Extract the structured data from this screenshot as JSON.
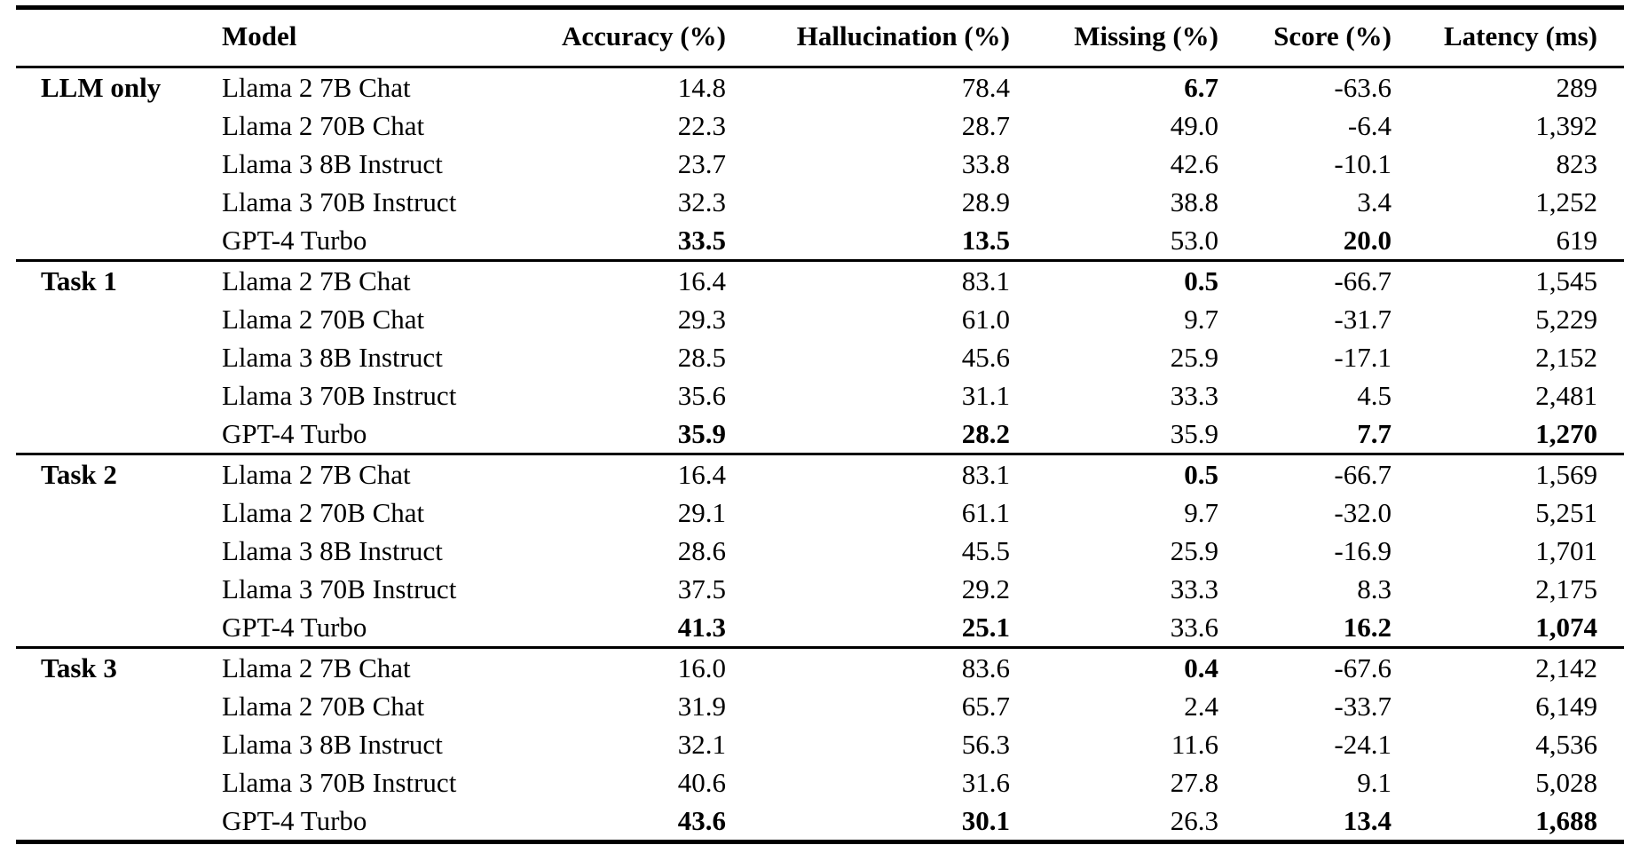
{
  "colors": {
    "background": "#ffffff",
    "text": "#000000",
    "rule": "#000000"
  },
  "table": {
    "columns": [
      "Model",
      "Accuracy (%)",
      "Hallucination (%)",
      "Missing (%)",
      "Score (%)",
      "Latency (ms)"
    ],
    "column_keys": [
      "accuracy",
      "hallucination",
      "missing",
      "score",
      "latency"
    ],
    "groups": [
      {
        "label": "LLM only",
        "rows": [
          {
            "model": "Llama 2 7B Chat",
            "cells": [
              {
                "v": "14.8"
              },
              {
                "v": "78.4"
              },
              {
                "v": "6.7",
                "b": true
              },
              {
                "v": "-63.6"
              },
              {
                "v": "289"
              }
            ]
          },
          {
            "model": "Llama 2 70B Chat",
            "cells": [
              {
                "v": "22.3"
              },
              {
                "v": "28.7"
              },
              {
                "v": "49.0"
              },
              {
                "v": "-6.4"
              },
              {
                "v": "1,392"
              }
            ]
          },
          {
            "model": "Llama 3 8B Instruct",
            "cells": [
              {
                "v": "23.7"
              },
              {
                "v": "33.8"
              },
              {
                "v": "42.6"
              },
              {
                "v": "-10.1"
              },
              {
                "v": "823"
              }
            ]
          },
          {
            "model": "Llama 3 70B Instruct",
            "cells": [
              {
                "v": "32.3"
              },
              {
                "v": "28.9"
              },
              {
                "v": "38.8"
              },
              {
                "v": "3.4"
              },
              {
                "v": "1,252"
              }
            ]
          },
          {
            "model": "GPT-4 Turbo",
            "cells": [
              {
                "v": "33.5",
                "b": true
              },
              {
                "v": "13.5",
                "b": true
              },
              {
                "v": "53.0"
              },
              {
                "v": "20.0",
                "b": true
              },
              {
                "v": "619"
              }
            ]
          }
        ]
      },
      {
        "label": "Task 1",
        "rows": [
          {
            "model": "Llama 2 7B Chat",
            "cells": [
              {
                "v": "16.4"
              },
              {
                "v": "83.1"
              },
              {
                "v": "0.5",
                "b": true
              },
              {
                "v": "-66.7"
              },
              {
                "v": "1,545"
              }
            ]
          },
          {
            "model": "Llama 2 70B Chat",
            "cells": [
              {
                "v": "29.3"
              },
              {
                "v": "61.0"
              },
              {
                "v": "9.7"
              },
              {
                "v": "-31.7"
              },
              {
                "v": "5,229"
              }
            ]
          },
          {
            "model": "Llama 3 8B Instruct",
            "cells": [
              {
                "v": "28.5"
              },
              {
                "v": "45.6"
              },
              {
                "v": "25.9"
              },
              {
                "v": "-17.1"
              },
              {
                "v": "2,152"
              }
            ]
          },
          {
            "model": "Llama 3 70B Instruct",
            "cells": [
              {
                "v": "35.6"
              },
              {
                "v": "31.1"
              },
              {
                "v": "33.3"
              },
              {
                "v": "4.5"
              },
              {
                "v": "2,481"
              }
            ]
          },
          {
            "model": "GPT-4 Turbo",
            "cells": [
              {
                "v": "35.9",
                "b": true
              },
              {
                "v": "28.2",
                "b": true
              },
              {
                "v": "35.9"
              },
              {
                "v": "7.7",
                "b": true
              },
              {
                "v": "1,270",
                "b": true
              }
            ]
          }
        ]
      },
      {
        "label": "Task 2",
        "rows": [
          {
            "model": "Llama 2 7B Chat",
            "cells": [
              {
                "v": "16.4"
              },
              {
                "v": "83.1"
              },
              {
                "v": "0.5",
                "b": true
              },
              {
                "v": "-66.7"
              },
              {
                "v": "1,569"
              }
            ]
          },
          {
            "model": "Llama 2 70B Chat",
            "cells": [
              {
                "v": "29.1"
              },
              {
                "v": "61.1"
              },
              {
                "v": "9.7"
              },
              {
                "v": "-32.0"
              },
              {
                "v": "5,251"
              }
            ]
          },
          {
            "model": "Llama 3 8B Instruct",
            "cells": [
              {
                "v": "28.6"
              },
              {
                "v": "45.5"
              },
              {
                "v": "25.9"
              },
              {
                "v": "-16.9"
              },
              {
                "v": "1,701"
              }
            ]
          },
          {
            "model": "Llama 3 70B Instruct",
            "cells": [
              {
                "v": "37.5"
              },
              {
                "v": "29.2"
              },
              {
                "v": "33.3"
              },
              {
                "v": "8.3"
              },
              {
                "v": "2,175"
              }
            ]
          },
          {
            "model": "GPT-4 Turbo",
            "cells": [
              {
                "v": "41.3",
                "b": true
              },
              {
                "v": "25.1",
                "b": true
              },
              {
                "v": "33.6"
              },
              {
                "v": "16.2",
                "b": true
              },
              {
                "v": "1,074",
                "b": true
              }
            ]
          }
        ]
      },
      {
        "label": "Task 3",
        "rows": [
          {
            "model": "Llama 2 7B Chat",
            "cells": [
              {
                "v": "16.0"
              },
              {
                "v": "83.6"
              },
              {
                "v": "0.4",
                "b": true
              },
              {
                "v": "-67.6"
              },
              {
                "v": "2,142"
              }
            ]
          },
          {
            "model": "Llama 2 70B Chat",
            "cells": [
              {
                "v": "31.9"
              },
              {
                "v": "65.7"
              },
              {
                "v": "2.4"
              },
              {
                "v": "-33.7"
              },
              {
                "v": "6,149"
              }
            ]
          },
          {
            "model": "Llama 3 8B Instruct",
            "cells": [
              {
                "v": "32.1"
              },
              {
                "v": "56.3"
              },
              {
                "v": "11.6"
              },
              {
                "v": "-24.1"
              },
              {
                "v": "4,536"
              }
            ]
          },
          {
            "model": "Llama 3 70B Instruct",
            "cells": [
              {
                "v": "40.6"
              },
              {
                "v": "31.6"
              },
              {
                "v": "27.8"
              },
              {
                "v": "9.1"
              },
              {
                "v": "5,028"
              }
            ]
          },
          {
            "model": "GPT-4 Turbo",
            "cells": [
              {
                "v": "43.6",
                "b": true
              },
              {
                "v": "30.1",
                "b": true
              },
              {
                "v": "26.3"
              },
              {
                "v": "13.4",
                "b": true
              },
              {
                "v": "1,688",
                "b": true
              }
            ]
          }
        ]
      }
    ]
  }
}
